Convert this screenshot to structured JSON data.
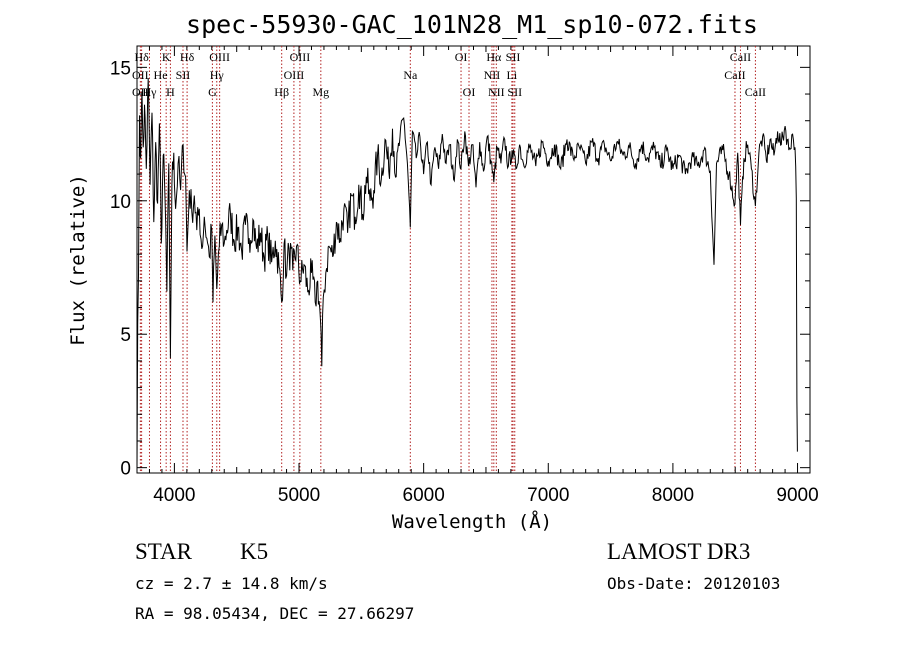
{
  "chart_data": {
    "type": "line",
    "title": "spec-55930-GAC_101N28_M1_sp10-072.fits",
    "xlabel": "Wavelength (Å)",
    "ylabel": "Flux (relative)",
    "xlim": [
      3700,
      9100
    ],
    "ylim": [
      -0.2,
      15.8
    ],
    "xticks": [
      4000,
      5000,
      6000,
      7000,
      8000,
      9000
    ],
    "yticks": [
      0,
      5,
      10,
      15
    ],
    "series": [
      {
        "values": [
          [
            3700,
            0.0
          ],
          [
            3706,
            5.4
          ],
          [
            3712,
            7.2
          ],
          [
            3720,
            13.2
          ],
          [
            3730,
            11.6
          ],
          [
            3740,
            14.1
          ],
          [
            3750,
            12.0
          ],
          [
            3760,
            13.6
          ],
          [
            3775,
            11.2
          ],
          [
            3790,
            14.6
          ],
          [
            3805,
            10.6
          ],
          [
            3820,
            13.3
          ],
          [
            3835,
            9.2
          ],
          [
            3850,
            12.2
          ],
          [
            3865,
            9.9
          ],
          [
            3880,
            12.9
          ],
          [
            3895,
            8.4
          ],
          [
            3910,
            11.7
          ],
          [
            3925,
            10.1
          ],
          [
            3940,
            6.6
          ],
          [
            3955,
            11.4
          ],
          [
            3968,
            4.1
          ],
          [
            3980,
            10.6
          ],
          [
            3995,
            11.8
          ],
          [
            4010,
            9.7
          ],
          [
            4030,
            11.4
          ],
          [
            4050,
            10.4
          ],
          [
            4070,
            12.1
          ],
          [
            4090,
            10.9
          ],
          [
            4101,
            8.1
          ],
          [
            4120,
            10.4
          ],
          [
            4140,
            9.6
          ],
          [
            4160,
            10.2
          ],
          [
            4180,
            8.9
          ],
          [
            4200,
            9.7
          ],
          [
            4220,
            8.2
          ],
          [
            4240,
            9.4
          ],
          [
            4260,
            8.6
          ],
          [
            4280,
            7.9
          ],
          [
            4300,
            8.9
          ],
          [
            4310,
            6.2
          ],
          [
            4325,
            8.7
          ],
          [
            4340,
            6.7
          ],
          [
            4360,
            8.3
          ],
          [
            4380,
            9.1
          ],
          [
            4400,
            8.4
          ],
          [
            4420,
            8.9
          ],
          [
            4450,
            9.5
          ],
          [
            4480,
            8.5
          ],
          [
            4510,
            9.0
          ],
          [
            4540,
            8.1
          ],
          [
            4570,
            9.1
          ],
          [
            4600,
            8.6
          ],
          [
            4630,
            9.3
          ],
          [
            4660,
            8.2
          ],
          [
            4690,
            8.8
          ],
          [
            4720,
            7.9
          ],
          [
            4750,
            8.6
          ],
          [
            4780,
            7.7
          ],
          [
            4810,
            8.5
          ],
          [
            4840,
            7.5
          ],
          [
            4861,
            6.2
          ],
          [
            4880,
            8.4
          ],
          [
            4900,
            7.2
          ],
          [
            4920,
            8.2
          ],
          [
            4950,
            7.4
          ],
          [
            4980,
            8.3
          ],
          [
            5010,
            7.0
          ],
          [
            5040,
            7.6
          ],
          [
            5070,
            6.6
          ],
          [
            5100,
            7.3
          ],
          [
            5130,
            6.2
          ],
          [
            5150,
            7.0
          ],
          [
            5172,
            5.5
          ],
          [
            5183,
            3.8
          ],
          [
            5195,
            6.4
          ],
          [
            5215,
            7.3
          ],
          [
            5240,
            8.3
          ],
          [
            5270,
            7.9
          ],
          [
            5300,
            9.2
          ],
          [
            5330,
            8.6
          ],
          [
            5360,
            9.7
          ],
          [
            5390,
            8.8
          ],
          [
            5420,
            10.2
          ],
          [
            5450,
            9.4
          ],
          [
            5480,
            10.6
          ],
          [
            5510,
            9.5
          ],
          [
            5540,
            10.9
          ],
          [
            5570,
            10.0
          ],
          [
            5600,
            10.4
          ],
          [
            5630,
            11.7
          ],
          [
            5660,
            10.8
          ],
          [
            5690,
            12.3
          ],
          [
            5720,
            11.1
          ],
          [
            5750,
            12.7
          ],
          [
            5780,
            10.9
          ],
          [
            5810,
            12.4
          ],
          [
            5840,
            13.1
          ],
          [
            5870,
            11.4
          ],
          [
            5893,
            9.0
          ],
          [
            5910,
            12.6
          ],
          [
            5940,
            11.6
          ],
          [
            5970,
            12.4
          ],
          [
            6000,
            11.0
          ],
          [
            6030,
            12.2
          ],
          [
            6060,
            10.6
          ],
          [
            6090,
            12.0
          ],
          [
            6120,
            11.2
          ],
          [
            6150,
            12.5
          ],
          [
            6180,
            11.4
          ],
          [
            6210,
            12.1
          ],
          [
            6240,
            10.8
          ],
          [
            6270,
            12.3
          ],
          [
            6300,
            11.2
          ],
          [
            6330,
            12.6
          ],
          [
            6360,
            11.3
          ],
          [
            6390,
            12.1
          ],
          [
            6420,
            10.5
          ],
          [
            6450,
            12.2
          ],
          [
            6480,
            11.1
          ],
          [
            6510,
            12.4
          ],
          [
            6540,
            11.5
          ],
          [
            6563,
            10.7
          ],
          [
            6590,
            12.0
          ],
          [
            6620,
            11.4
          ],
          [
            6650,
            12.3
          ],
          [
            6680,
            11.3
          ],
          [
            6710,
            11.9
          ],
          [
            6740,
            11.2
          ],
          [
            6770,
            12.1
          ],
          [
            6800,
            11.4
          ],
          [
            6850,
            12.0
          ],
          [
            6900,
            11.3
          ],
          [
            6950,
            12.2
          ],
          [
            7000,
            11.5
          ],
          [
            7050,
            12.1
          ],
          [
            7100,
            11.2
          ],
          [
            7150,
            12.3
          ],
          [
            7200,
            11.6
          ],
          [
            7250,
            12.0
          ],
          [
            7300,
            11.4
          ],
          [
            7350,
            12.2
          ],
          [
            7400,
            11.6
          ],
          [
            7450,
            12.1
          ],
          [
            7500,
            11.5
          ],
          [
            7550,
            12.2
          ],
          [
            7600,
            11.7
          ],
          [
            7650,
            12.0
          ],
          [
            7700,
            11.4
          ],
          [
            7750,
            12.1
          ],
          [
            7800,
            11.6
          ],
          [
            7850,
            12.0
          ],
          [
            7900,
            11.3
          ],
          [
            7950,
            11.9
          ],
          [
            8000,
            11.2
          ],
          [
            8050,
            11.7
          ],
          [
            8100,
            11.0
          ],
          [
            8150,
            11.6
          ],
          [
            8200,
            11.3
          ],
          [
            8250,
            11.9
          ],
          [
            8300,
            11.1
          ],
          [
            8330,
            7.6
          ],
          [
            8350,
            11.4
          ],
          [
            8400,
            11.9
          ],
          [
            8450,
            11.0
          ],
          [
            8498,
            9.9
          ],
          [
            8520,
            11.8
          ],
          [
            8542,
            9.1
          ],
          [
            8570,
            11.6
          ],
          [
            8600,
            12.1
          ],
          [
            8630,
            11.2
          ],
          [
            8662,
            9.8
          ],
          [
            8690,
            11.8
          ],
          [
            8720,
            12.4
          ],
          [
            8750,
            11.5
          ],
          [
            8780,
            12.3
          ],
          [
            8810,
            11.7
          ],
          [
            8840,
            12.6
          ],
          [
            8870,
            12.1
          ],
          [
            8900,
            12.8
          ],
          [
            8930,
            11.9
          ],
          [
            8960,
            12.5
          ],
          [
            8980,
            12.0
          ],
          [
            8990,
            10.1
          ],
          [
            8995,
            2.5
          ],
          [
            8999,
            0.6
          ]
        ]
      }
    ],
    "lines": [
      {
        "label": "Hδ",
        "x": 3737,
        "row": 0
      },
      {
        "label": "K",
        "x": 3934,
        "row": 0
      },
      {
        "label": "Hδ",
        "x": 4102,
        "row": 0
      },
      {
        "label": "OIII",
        "x": 4363,
        "row": 0
      },
      {
        "label": "OIII",
        "x": 5007,
        "row": 0
      },
      {
        "label": "OI",
        "x": 6300,
        "row": 0
      },
      {
        "label": "Hα",
        "x": 6563,
        "row": 0
      },
      {
        "label": "SII",
        "x": 6717,
        "row": 0
      },
      {
        "label": "CaII",
        "x": 8542,
        "row": 0
      },
      {
        "label": "OII",
        "x": 3727,
        "row": 1
      },
      {
        "label": "He",
        "x": 3889,
        "row": 1
      },
      {
        "label": "SII",
        "x": 4069,
        "row": 1
      },
      {
        "label": "Hγ",
        "x": 4340,
        "row": 1
      },
      {
        "label": "OIII",
        "x": 4959,
        "row": 1
      },
      {
        "label": "Na",
        "x": 5893,
        "row": 1
      },
      {
        "label": "NII",
        "x": 6548,
        "row": 1
      },
      {
        "label": "Li",
        "x": 6708,
        "row": 1
      },
      {
        "label": "CaII",
        "x": 8498,
        "row": 1
      },
      {
        "label": "OII",
        "x": 3727,
        "row": 2
      },
      {
        "label": "Hγ",
        "x": 3800,
        "row": 2
      },
      {
        "label": "H",
        "x": 3968,
        "row": 2
      },
      {
        "label": "G",
        "x": 4305,
        "row": 2
      },
      {
        "label": "Hβ",
        "x": 4861,
        "row": 2
      },
      {
        "label": "Mg",
        "x": 5175,
        "row": 2
      },
      {
        "label": "OI",
        "x": 6364,
        "row": 2
      },
      {
        "label": "NII",
        "x": 6583,
        "row": 2
      },
      {
        "label": "SII",
        "x": 6731,
        "row": 2
      },
      {
        "label": "CaII",
        "x": 8662,
        "row": 2
      }
    ],
    "vlines_x": [
      3727,
      3737,
      3800,
      3889,
      3934,
      3968,
      4069,
      4102,
      4305,
      4340,
      4363,
      4861,
      4959,
      5007,
      5175,
      5893,
      6300,
      6364,
      6548,
      6563,
      6583,
      6708,
      6717,
      6731,
      8498,
      8542,
      8662
    ],
    "colors": {
      "spectrum": "#000000",
      "lines": "#b22222",
      "axes": "#000000"
    }
  },
  "info": {
    "class": "STAR",
    "subclass": "K5",
    "survey": "LAMOST DR3",
    "cz": "cz = 2.7 ± 14.8 km/s",
    "obsdate": "Obs-Date: 20120103",
    "radec": "RA =  98.05434, DEC =  27.66297"
  }
}
